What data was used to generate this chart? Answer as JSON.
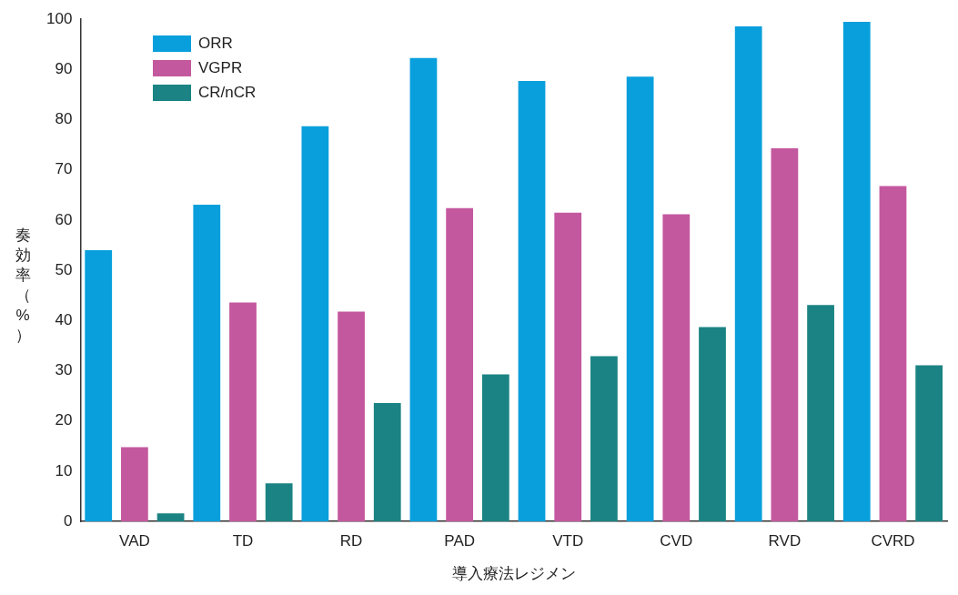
{
  "chart_data": {
    "type": "bar",
    "xlabel": "導入療法レジメン",
    "ylabel": "奏効率（%）",
    "categories": [
      "VAD",
      "TD",
      "RD",
      "PAD",
      "VTD",
      "CVD",
      "RVD",
      "CVRD"
    ],
    "series": [
      {
        "name": "ORR",
        "color": "#089fdc",
        "values": [
          54.0,
          63.1,
          78.7,
          92.3,
          87.7,
          88.6,
          98.6,
          99.5
        ]
      },
      {
        "name": "VGPR",
        "color": "#c4589f",
        "values": [
          14.8,
          43.6,
          41.8,
          62.4,
          61.5,
          61.2,
          74.3,
          66.8
        ]
      },
      {
        "name": "CR/nCR",
        "color": "#1b8383",
        "values": [
          1.6,
          7.6,
          23.6,
          29.3,
          32.9,
          38.7,
          43.1,
          31.1
        ]
      }
    ],
    "ylim": [
      0,
      100
    ],
    "yticks": [
      0,
      10,
      20,
      30,
      40,
      50,
      60,
      70,
      80,
      90,
      100
    ],
    "grid": false,
    "legend": "top left"
  }
}
